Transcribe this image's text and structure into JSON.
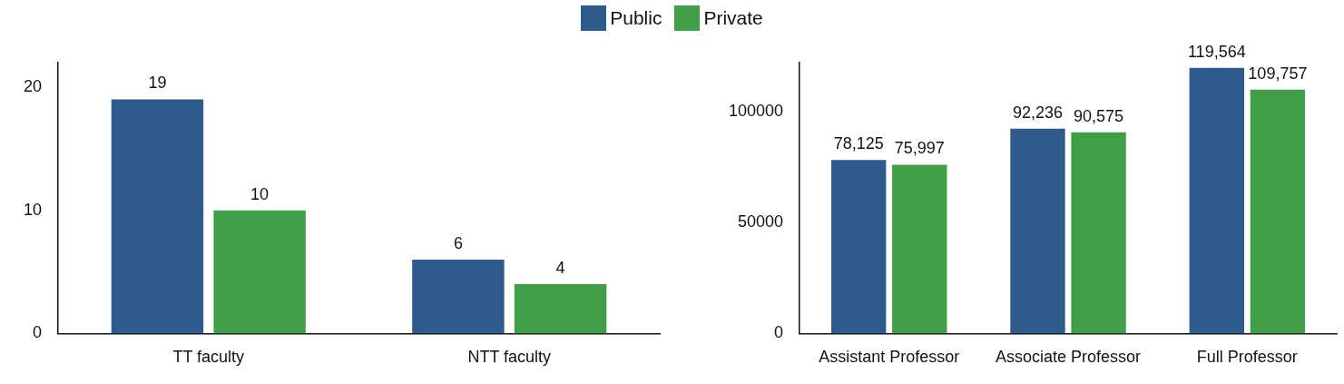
{
  "chart_data": [
    {
      "type": "bar",
      "categories": [
        "TT faculty",
        "NTT faculty"
      ],
      "series": [
        {
          "name": "Public",
          "color": "#2e5a8c",
          "values": [
            19,
            6
          ]
        },
        {
          "name": "Private",
          "color": "#419e48",
          "values": [
            10,
            4
          ]
        }
      ],
      "ylim": [
        0,
        22
      ],
      "yticks": [
        0,
        10,
        20
      ],
      "grid": false,
      "legend": "top",
      "data_labels": true
    },
    {
      "type": "bar",
      "categories": [
        "Assistant Professor",
        "Associate Professor",
        "Full Professor"
      ],
      "series": [
        {
          "color": "#2e5a8c",
          "values": [
            78125,
            92236,
            119564
          ],
          "value_labels": [
            "78,125",
            "92,236",
            "119,564"
          ]
        },
        {
          "color": "#419e48",
          "values": [
            75997,
            90575,
            109757
          ],
          "value_labels": [
            "75,997",
            "90,575",
            "109,757"
          ]
        }
      ],
      "ylim": [
        0,
        122000
      ],
      "yticks": [
        0,
        50000,
        100000
      ],
      "grid": false
    }
  ]
}
